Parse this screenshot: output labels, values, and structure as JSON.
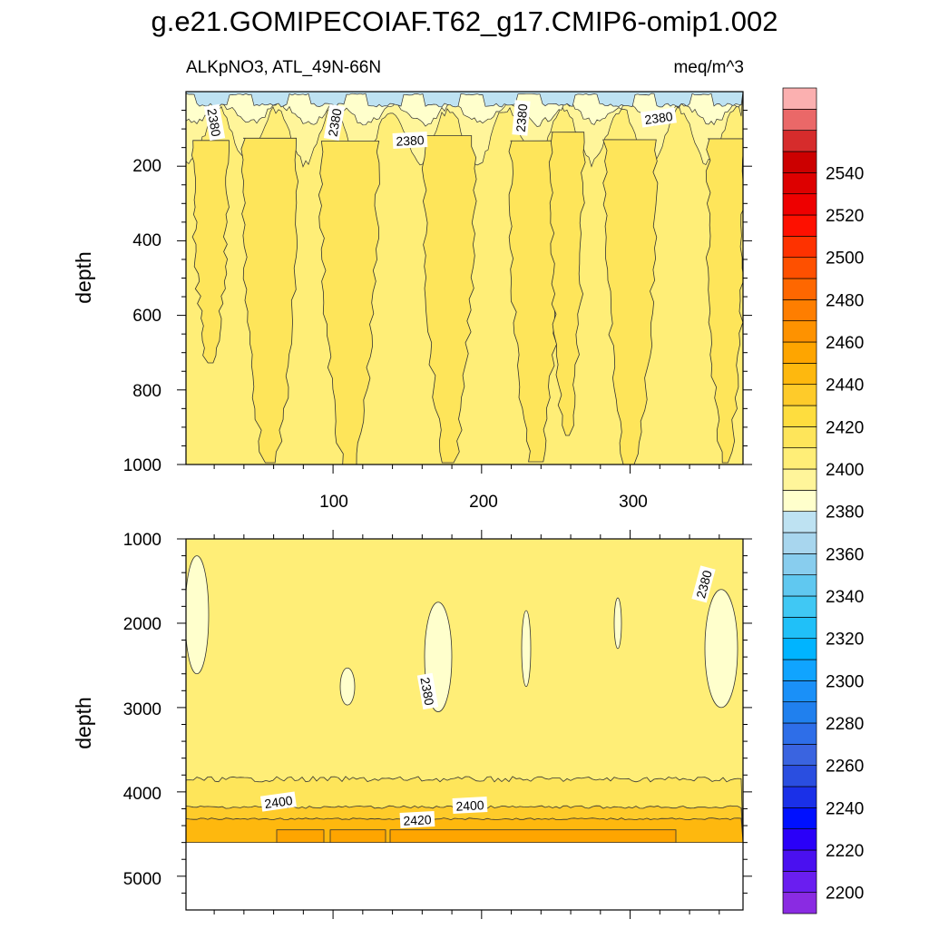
{
  "chart_data": {
    "type": "heatmap",
    "title": "g.e21.GOMIPECOIAF.T62_g17.CMIP6-omip1.002",
    "left_subtitle": "ALKpNO3, ATL_49N-66N",
    "right_subtitle": "meq/m^3",
    "xlim": [
      1,
      376
    ],
    "x_ticks": [
      100,
      200,
      300
    ],
    "x_tick_labels": [
      "100",
      "200",
      "300"
    ],
    "panels": [
      {
        "name": "upper",
        "ylabel": "depth",
        "ylim": [
          0,
          1000
        ],
        "y_ticks": [
          200,
          400,
          600,
          800,
          1000
        ],
        "y_tick_labels": [
          "200",
          "400",
          "600",
          "800",
          "1000"
        ],
        "background_level": 2380,
        "contour_labels": [
          "2380",
          "2380",
          "2380",
          "2380",
          "2380"
        ]
      },
      {
        "name": "lower",
        "ylabel": "depth",
        "ylim": [
          1000,
          5400
        ],
        "y_ticks": [
          1000,
          2000,
          3000,
          4000,
          5000
        ],
        "y_tick_labels": [
          "1000",
          "2000",
          "3000",
          "4000",
          "5000"
        ],
        "data_bottom_depth": 4600,
        "background_level": 2380,
        "contour_labels": [
          "2380",
          "2380",
          "2400",
          "2400",
          "2420"
        ]
      }
    ],
    "colorbar": {
      "levels": [
        2200,
        2210,
        2220,
        2230,
        2240,
        2250,
        2260,
        2270,
        2280,
        2290,
        2300,
        2310,
        2320,
        2330,
        2340,
        2350,
        2360,
        2370,
        2380,
        2390,
        2400,
        2410,
        2420,
        2430,
        2440,
        2450,
        2460,
        2470,
        2480,
        2490,
        2500,
        2510,
        2520,
        2530,
        2540,
        2550
      ],
      "labels": [
        "2200",
        "2220",
        "2240",
        "2260",
        "2280",
        "2300",
        "2320",
        "2340",
        "2360",
        "2380",
        "2400",
        "2420",
        "2440",
        "2460",
        "2480",
        "2500",
        "2520",
        "2540"
      ],
      "colors": [
        "#8a2be2",
        "#6a1ef0",
        "#4a10f0",
        "#2a00f8",
        "#0010ff",
        "#1a30e8",
        "#2a4ee0",
        "#3a64e0",
        "#2e6ee8",
        "#2080ee",
        "#1a90f8",
        "#10a4ff",
        "#00b4ff",
        "#20c0f8",
        "#40c8f4",
        "#60c8f0",
        "#88cdee",
        "#a8d6ee",
        "#bee2f2",
        "#ffffcc",
        "#fff59a",
        "#ffee77",
        "#fee55a",
        "#fedd3e",
        "#fecb2a",
        "#feb80e",
        "#fea500",
        "#fe9200",
        "#fe7e00",
        "#fe6700",
        "#fe5000",
        "#fe3200",
        "#fe1000",
        "#ee0000",
        "#dd0000",
        "#cc0000",
        "#d62c2c",
        "#ea6868",
        "#fbb0b0"
      ]
    }
  }
}
